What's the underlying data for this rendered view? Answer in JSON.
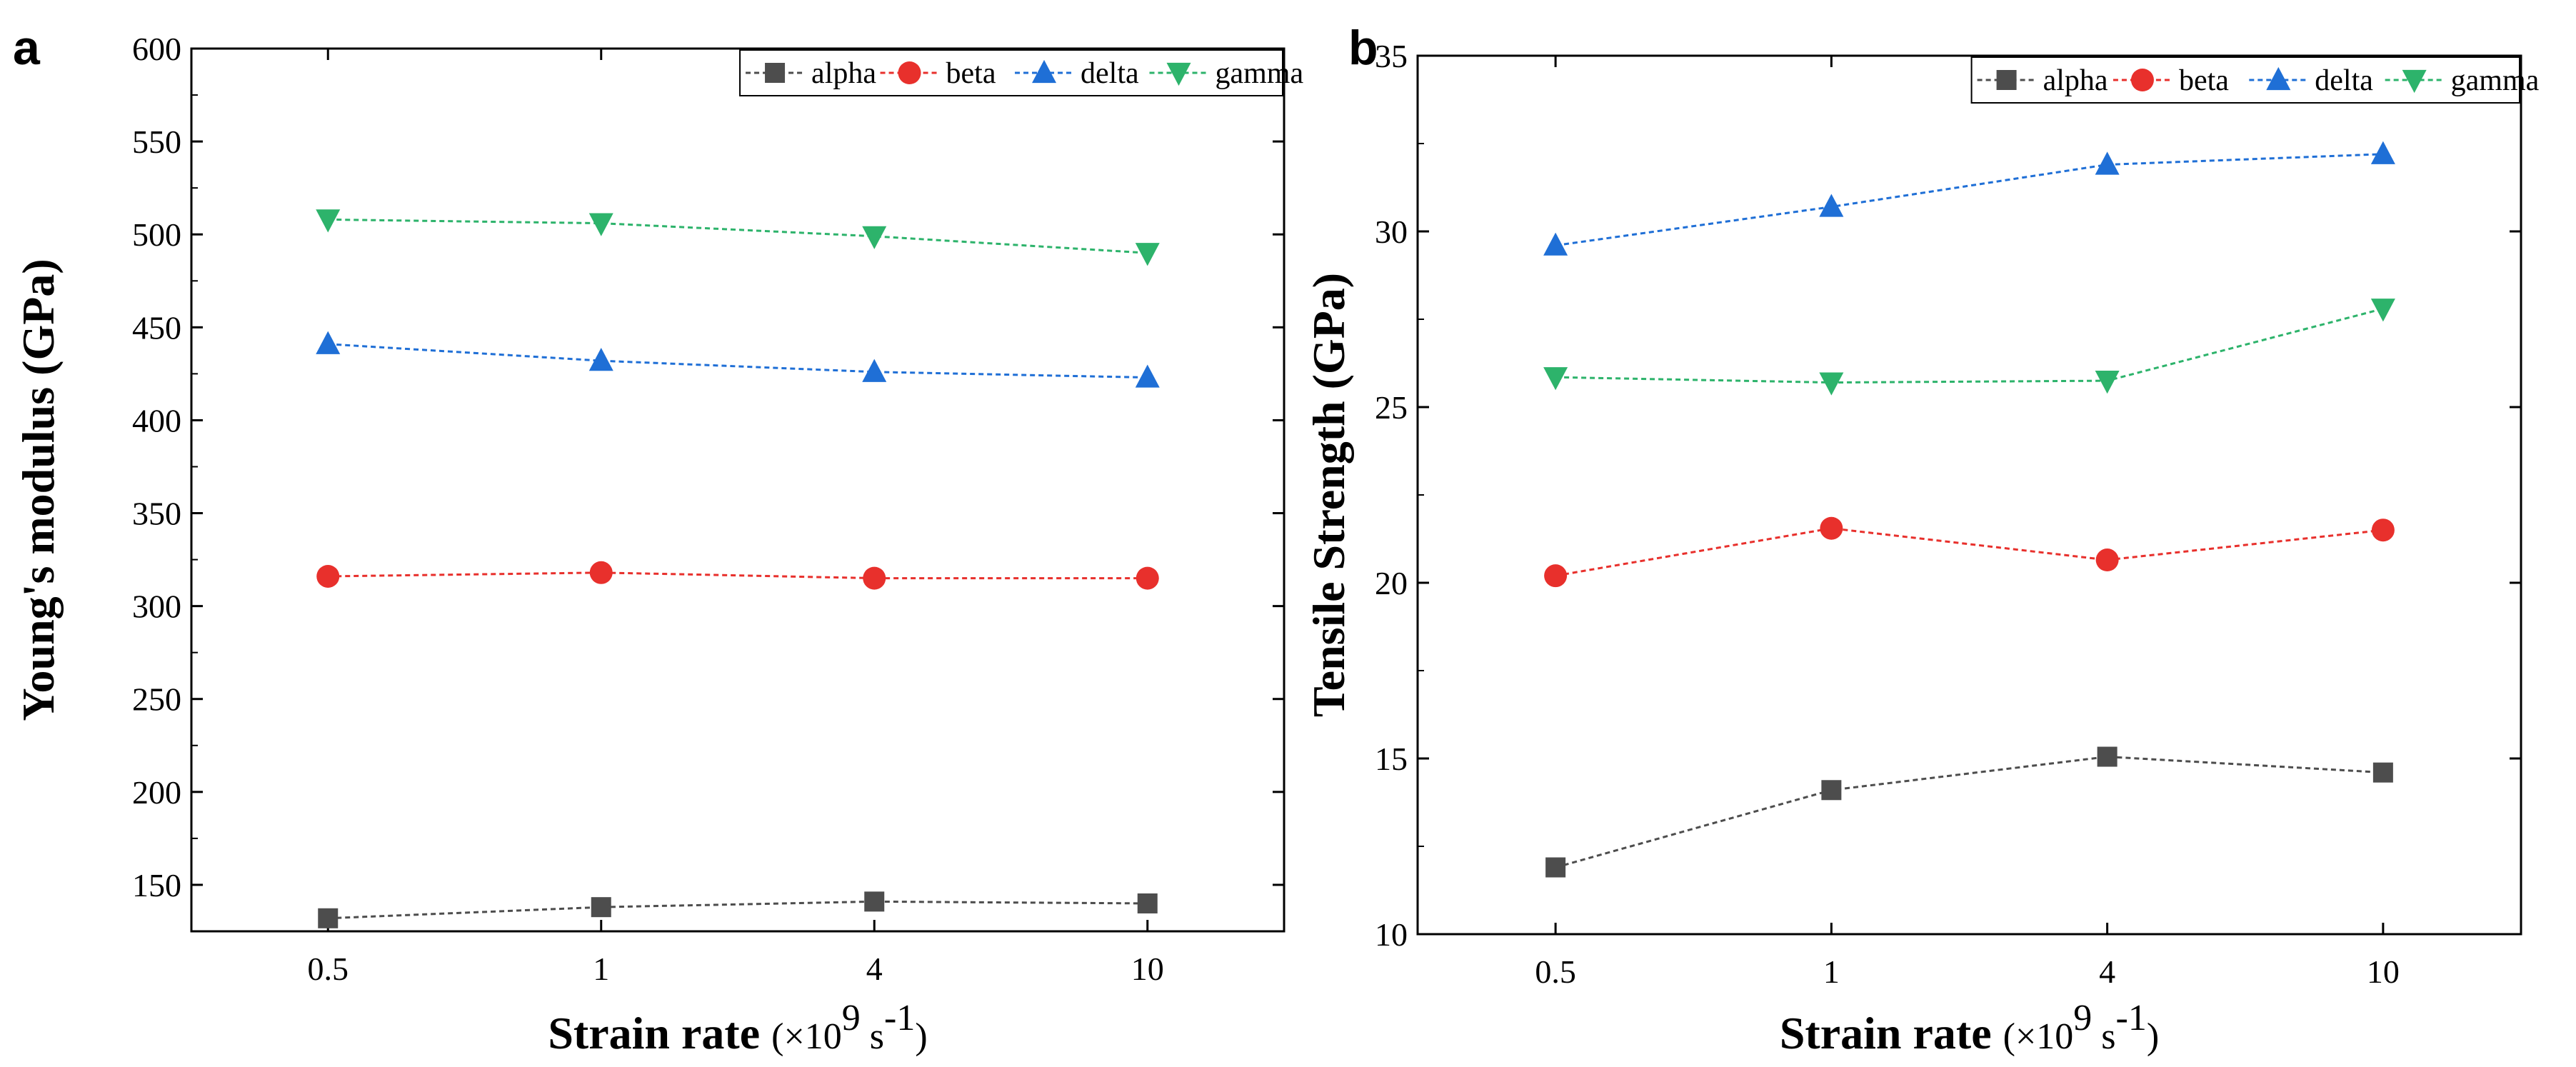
{
  "chart_data": [
    {
      "panel": "a",
      "type": "line",
      "categories": [
        "0.5",
        "1",
        "4",
        "10"
      ],
      "ylabel": "Young's modulus (GPa)",
      "xlabel_main": "Strain rate",
      "xlabel_unit_prefix": "(×10",
      "xlabel_unit_exp": "9",
      "xlabel_unit_mid": " s",
      "xlabel_unit_exp2": "-1",
      "xlabel_unit_suffix": ")",
      "ylim": [
        125,
        600
      ],
      "yticks": [
        150,
        200,
        250,
        300,
        350,
        400,
        450,
        500,
        550,
        600
      ],
      "legend_position": "top-right",
      "series": [
        {
          "name": "alpha",
          "color": "#4d4d4d",
          "marker": "square",
          "values": [
            132,
            138,
            141,
            140
          ]
        },
        {
          "name": "beta",
          "color": "#e8302c",
          "marker": "circle",
          "values": [
            316,
            318,
            315,
            315
          ]
        },
        {
          "name": "delta",
          "color": "#1f6fd6",
          "marker": "triangle-up",
          "values": [
            441,
            432,
            426,
            423
          ]
        },
        {
          "name": "gamma",
          "color": "#2db36b",
          "marker": "triangle-down",
          "values": [
            508,
            506,
            499,
            490
          ]
        }
      ]
    },
    {
      "panel": "b",
      "type": "line",
      "categories": [
        "0.5",
        "1",
        "4",
        "10"
      ],
      "ylabel": "Tensile Strength (GPa)",
      "xlabel_main": "Strain rate",
      "xlabel_unit_prefix": "(×10",
      "xlabel_unit_exp": "9",
      "xlabel_unit_mid": " s",
      "xlabel_unit_exp2": "-1",
      "xlabel_unit_suffix": ")",
      "ylim": [
        10,
        35
      ],
      "yticks": [
        10,
        15,
        20,
        25,
        30,
        35
      ],
      "legend_position": "top-right",
      "series": [
        {
          "name": "alpha",
          "color": "#4d4d4d",
          "marker": "square",
          "values": [
            11.9,
            14.1,
            15.05,
            14.6
          ]
        },
        {
          "name": "beta",
          "color": "#e8302c",
          "marker": "circle",
          "values": [
            20.2,
            21.55,
            20.65,
            21.5
          ]
        },
        {
          "name": "delta",
          "color": "#1f6fd6",
          "marker": "triangle-up",
          "values": [
            29.6,
            30.7,
            31.9,
            32.2
          ]
        },
        {
          "name": "gamma",
          "color": "#2db36b",
          "marker": "triangle-down",
          "values": [
            25.85,
            25.7,
            25.75,
            27.8
          ]
        }
      ]
    }
  ]
}
